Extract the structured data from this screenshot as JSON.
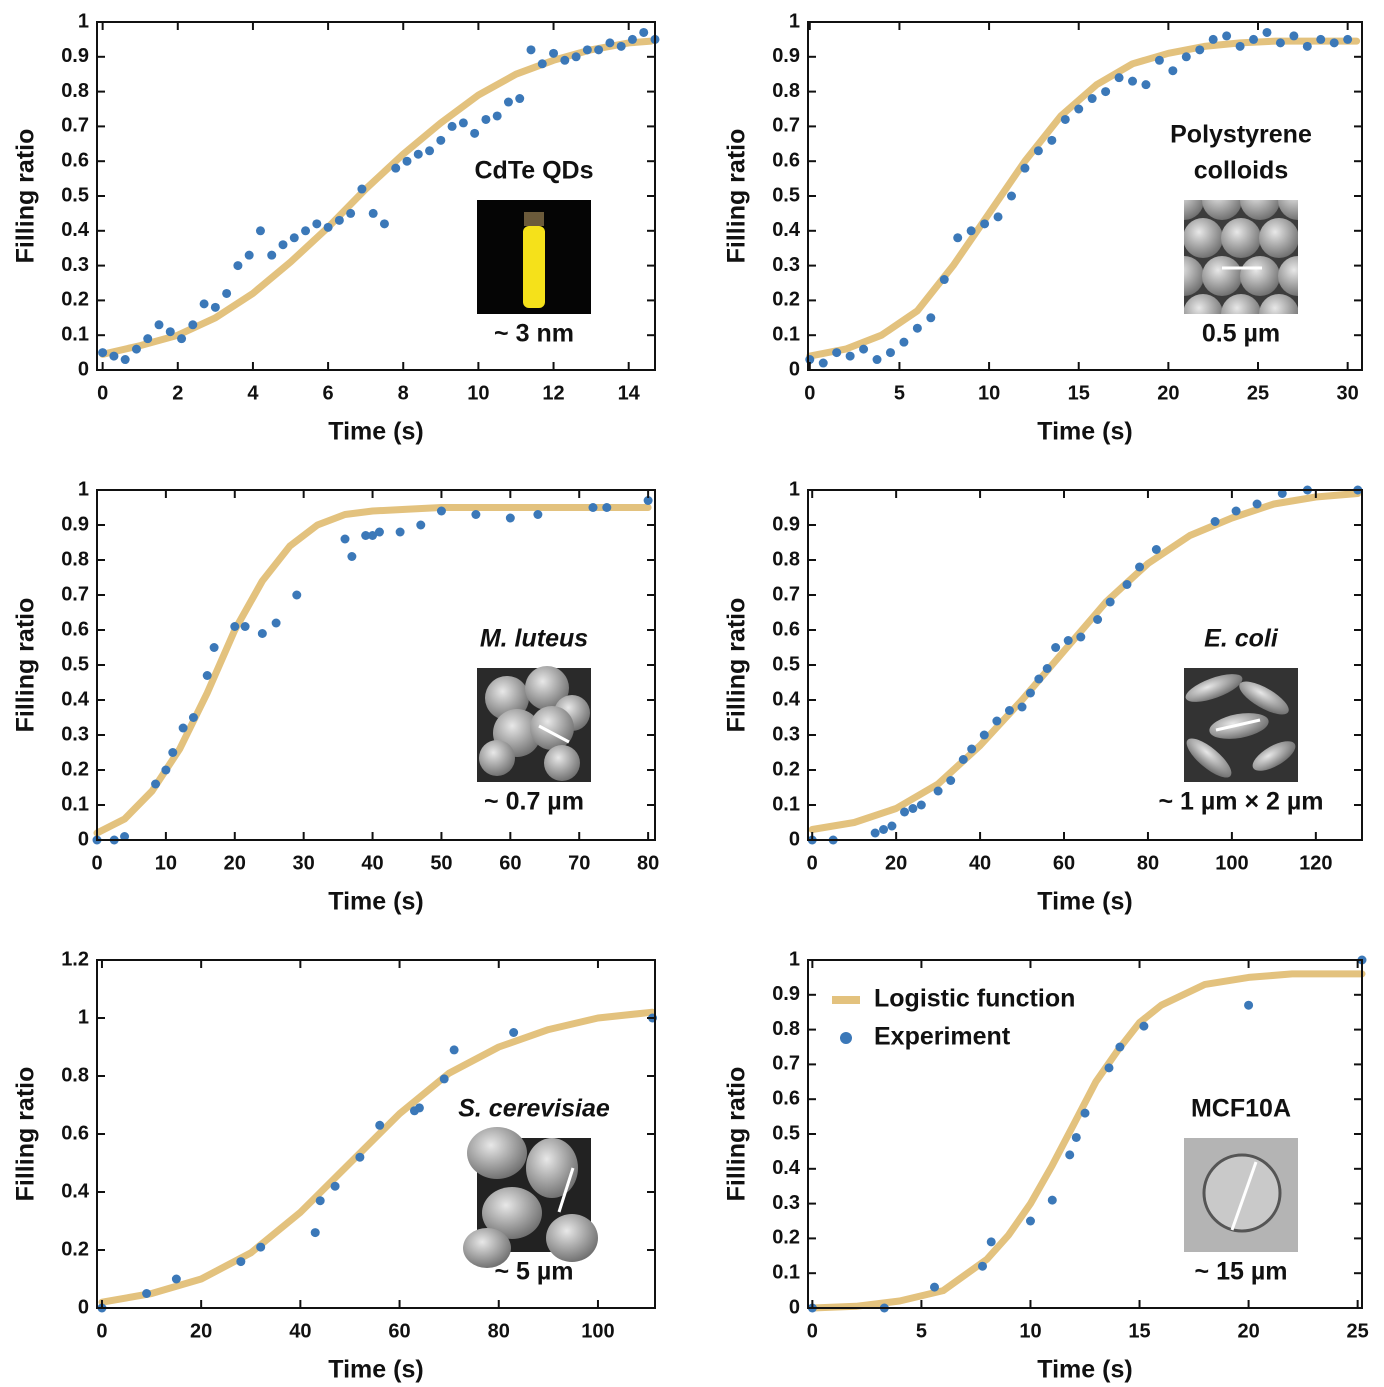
{
  "chart_data": [
    {
      "type": "scatter",
      "xlabel": "Time (s)",
      "ylabel": "Filling ratio",
      "xlim": [
        -0.15,
        14.7
      ],
      "ylim": [
        0,
        1
      ],
      "xticks": [
        0,
        2,
        4,
        6,
        8,
        10,
        12,
        14
      ],
      "yticks": [
        0,
        0.1,
        0.2,
        0.3,
        0.4,
        0.5,
        0.6,
        0.7,
        0.8,
        0.9,
        1
      ],
      "inset": {
        "lines": [
          "CdTe QDs"
        ],
        "caption": "~ 3 nm",
        "italic": false
      },
      "series": [
        {
          "type": "line",
          "color": "#e3c27e",
          "x": [
            0,
            1,
            2,
            3,
            4,
            5,
            6,
            7,
            8,
            9,
            10,
            11,
            12,
            13,
            14,
            14.6
          ],
          "values": [
            0.045,
            0.07,
            0.1,
            0.15,
            0.22,
            0.31,
            0.41,
            0.52,
            0.62,
            0.71,
            0.79,
            0.85,
            0.89,
            0.92,
            0.94,
            0.945
          ]
        },
        {
          "type": "scatter",
          "color": "#3b78b8",
          "x": [
            0,
            0.3,
            0.6,
            0.9,
            1.2,
            1.5,
            1.8,
            2.1,
            2.4,
            2.7,
            3.0,
            3.3,
            3.6,
            3.9,
            4.2,
            4.5,
            4.8,
            5.1,
            5.4,
            5.7,
            6.0,
            6.3,
            6.6,
            6.9,
            7.2,
            7.5,
            7.8,
            8.1,
            8.4,
            8.7,
            9.0,
            9.3,
            9.6,
            9.9,
            10.2,
            10.5,
            10.8,
            11.1,
            11.4,
            11.7,
            12.0,
            12.3,
            12.6,
            12.9,
            13.2,
            13.5,
            13.8,
            14.1,
            14.4,
            14.7
          ],
          "values": [
            0.05,
            0.04,
            0.03,
            0.06,
            0.09,
            0.13,
            0.11,
            0.09,
            0.13,
            0.19,
            0.18,
            0.22,
            0.3,
            0.33,
            0.4,
            0.33,
            0.36,
            0.38,
            0.4,
            0.42,
            0.41,
            0.43,
            0.45,
            0.52,
            0.45,
            0.42,
            0.58,
            0.6,
            0.62,
            0.63,
            0.66,
            0.7,
            0.71,
            0.68,
            0.72,
            0.73,
            0.77,
            0.78,
            0.92,
            0.88,
            0.91,
            0.89,
            0.9,
            0.92,
            0.92,
            0.94,
            0.93,
            0.95,
            0.97,
            0.95
          ]
        }
      ]
    },
    {
      "type": "scatter",
      "xlabel": "Time (s)",
      "ylabel": "Filling ratio",
      "xlim": [
        -0.1,
        30.8
      ],
      "ylim": [
        0,
        1
      ],
      "xticks": [
        0,
        5,
        10,
        15,
        20,
        25,
        30
      ],
      "yticks": [
        0,
        0.1,
        0.2,
        0.3,
        0.4,
        0.5,
        0.6,
        0.7,
        0.8,
        0.9,
        1
      ],
      "inset": {
        "lines": [
          "Polystyrene",
          "colloids"
        ],
        "caption": "0.5 µm",
        "italic": false
      },
      "series": [
        {
          "type": "line",
          "color": "#e3c27e",
          "x": [
            0,
            2,
            4,
            6,
            8,
            10,
            12,
            14,
            16,
            18,
            20,
            22,
            24,
            26,
            28,
            30.5
          ],
          "values": [
            0.04,
            0.06,
            0.1,
            0.17,
            0.3,
            0.45,
            0.6,
            0.73,
            0.82,
            0.88,
            0.91,
            0.93,
            0.94,
            0.945,
            0.945,
            0.945
          ]
        },
        {
          "type": "scatter",
          "color": "#3b78b8",
          "x": [
            0,
            0.75,
            1.5,
            2.25,
            3,
            3.75,
            4.5,
            5.25,
            6,
            6.75,
            7.5,
            8.25,
            9,
            9.75,
            10.5,
            11.25,
            12,
            12.75,
            13.5,
            14.25,
            15,
            15.75,
            16.5,
            17.25,
            18,
            18.75,
            19.5,
            20.25,
            21,
            21.75,
            22.5,
            23.25,
            24,
            24.75,
            25.5,
            26.25,
            27,
            27.75,
            28.5,
            29.25,
            30
          ],
          "values": [
            0.03,
            0.02,
            0.05,
            0.04,
            0.06,
            0.03,
            0.05,
            0.08,
            0.12,
            0.15,
            0.26,
            0.38,
            0.4,
            0.42,
            0.44,
            0.5,
            0.58,
            0.63,
            0.66,
            0.72,
            0.75,
            0.78,
            0.8,
            0.84,
            0.83,
            0.82,
            0.89,
            0.86,
            0.9,
            0.92,
            0.95,
            0.96,
            0.93,
            0.95,
            0.97,
            0.94,
            0.96,
            0.93,
            0.95,
            0.94,
            0.95
          ]
        }
      ]
    },
    {
      "type": "scatter",
      "xlabel": "Time (s)",
      "ylabel": "Filling ratio",
      "xlim": [
        0,
        81
      ],
      "ylim": [
        0,
        1
      ],
      "xticks": [
        0,
        10,
        20,
        30,
        40,
        50,
        60,
        70,
        80
      ],
      "yticks": [
        0,
        0.1,
        0.2,
        0.3,
        0.4,
        0.5,
        0.6,
        0.7,
        0.8,
        0.9,
        1
      ],
      "inset": {
        "lines": [
          "M. luteus"
        ],
        "caption": "~ 0.7 µm",
        "italic": true
      },
      "series": [
        {
          "type": "line",
          "color": "#e3c27e",
          "x": [
            0,
            4,
            8,
            12,
            16,
            20,
            24,
            28,
            32,
            36,
            40,
            45,
            50,
            60,
            70,
            80
          ],
          "values": [
            0.02,
            0.06,
            0.14,
            0.26,
            0.42,
            0.6,
            0.74,
            0.84,
            0.9,
            0.93,
            0.94,
            0.945,
            0.95,
            0.95,
            0.95,
            0.95
          ]
        },
        {
          "type": "scatter",
          "color": "#3b78b8",
          "x": [
            0,
            2.5,
            4,
            8.5,
            10,
            11,
            12.5,
            14,
            16,
            17,
            20,
            21.5,
            24,
            26,
            29,
            36,
            37,
            39,
            40,
            41,
            44,
            47,
            50,
            55,
            60,
            64,
            72,
            74,
            80
          ],
          "values": [
            0,
            0,
            0.01,
            0.16,
            0.2,
            0.25,
            0.32,
            0.35,
            0.47,
            0.55,
            0.61,
            0.61,
            0.59,
            0.62,
            0.7,
            0.86,
            0.81,
            0.87,
            0.87,
            0.88,
            0.88,
            0.9,
            0.94,
            0.93,
            0.92,
            0.93,
            0.95,
            0.95,
            0.97
          ]
        }
      ]
    },
    {
      "type": "scatter",
      "xlabel": "Time (s)",
      "ylabel": "Filling ratio",
      "xlim": [
        -1,
        131
      ],
      "ylim": [
        0,
        1
      ],
      "xticks": [
        0,
        20,
        40,
        60,
        80,
        100,
        120
      ],
      "yticks": [
        0,
        0.1,
        0.2,
        0.3,
        0.4,
        0.5,
        0.6,
        0.7,
        0.8,
        0.9,
        1
      ],
      "inset": {
        "lines": [
          "E. coli"
        ],
        "caption": "~ 1 µm × 2 µm",
        "italic": true
      },
      "series": [
        {
          "type": "line",
          "color": "#e3c27e",
          "x": [
            0,
            10,
            20,
            30,
            40,
            50,
            60,
            70,
            80,
            90,
            100,
            110,
            120,
            130
          ],
          "values": [
            0.03,
            0.05,
            0.09,
            0.16,
            0.27,
            0.4,
            0.54,
            0.68,
            0.79,
            0.87,
            0.92,
            0.96,
            0.98,
            0.99
          ]
        },
        {
          "type": "scatter",
          "color": "#3b78b8",
          "x": [
            0,
            5,
            15,
            17,
            19,
            22,
            24,
            26,
            30,
            33,
            36,
            38,
            41,
            44,
            47,
            50,
            52,
            54,
            56,
            58,
            61,
            64,
            68,
            71,
            75,
            78,
            82,
            96,
            101,
            106,
            112,
            118,
            130
          ],
          "values": [
            0,
            0,
            0.02,
            0.03,
            0.04,
            0.08,
            0.09,
            0.1,
            0.14,
            0.17,
            0.23,
            0.26,
            0.3,
            0.34,
            0.37,
            0.38,
            0.42,
            0.46,
            0.49,
            0.55,
            0.57,
            0.58,
            0.63,
            0.68,
            0.73,
            0.78,
            0.83,
            0.91,
            0.94,
            0.96,
            0.99,
            1,
            1
          ]
        }
      ]
    },
    {
      "type": "scatter",
      "xlabel": "Time (s)",
      "ylabel": "Filling ratio",
      "xlim": [
        -1,
        111.5
      ],
      "ylim": [
        0,
        1.2
      ],
      "xticks": [
        0,
        20,
        40,
        60,
        80,
        100
      ],
      "yticks": [
        0,
        0.2,
        0.4,
        0.6,
        0.8,
        1,
        1.2
      ],
      "inset": {
        "lines": [
          "S. cerevisiae"
        ],
        "caption": "~ 5 µm",
        "italic": true
      },
      "series": [
        {
          "type": "line",
          "color": "#e3c27e",
          "x": [
            0,
            10,
            20,
            30,
            40,
            50,
            60,
            70,
            80,
            90,
            100,
            111
          ],
          "values": [
            0.02,
            0.05,
            0.1,
            0.19,
            0.33,
            0.5,
            0.67,
            0.81,
            0.9,
            0.96,
            1.0,
            1.02
          ]
        },
        {
          "type": "scatter",
          "color": "#3b78b8",
          "x": [
            0,
            9,
            15,
            28,
            32,
            43,
            44,
            47,
            52,
            56,
            63,
            64,
            69,
            71,
            83,
            111
          ],
          "values": [
            0,
            0.05,
            0.1,
            0.16,
            0.21,
            0.26,
            0.37,
            0.42,
            0.52,
            0.63,
            0.68,
            0.69,
            0.79,
            0.89,
            0.95,
            1
          ]
        }
      ]
    },
    {
      "type": "scatter",
      "xlabel": "Time (s)",
      "ylabel": "Filling ratio",
      "xlim": [
        -0.2,
        25.2
      ],
      "ylim": [
        0,
        1
      ],
      "xticks": [
        0,
        5,
        10,
        15,
        20,
        25
      ],
      "yticks": [
        0,
        0.1,
        0.2,
        0.3,
        0.4,
        0.5,
        0.6,
        0.7,
        0.8,
        0.9,
        1
      ],
      "legend": "upper left",
      "inset": {
        "lines": [
          "MCF10A"
        ],
        "caption": "~ 15 µm",
        "italic": false
      },
      "series": [
        {
          "name": "Logistic function",
          "type": "line",
          "color": "#e3c27e",
          "x": [
            0,
            2,
            4,
            6,
            8,
            9,
            10,
            11,
            12,
            13,
            14,
            15,
            16,
            18,
            20,
            22,
            25.2
          ],
          "values": [
            0,
            0.005,
            0.02,
            0.05,
            0.14,
            0.21,
            0.3,
            0.41,
            0.53,
            0.65,
            0.74,
            0.82,
            0.87,
            0.93,
            0.95,
            0.96,
            0.96
          ]
        },
        {
          "name": "Experiment",
          "type": "scatter",
          "color": "#3b78b8",
          "x": [
            0,
            3.3,
            5.6,
            7.8,
            8.2,
            10,
            11,
            11.8,
            12.1,
            12.5,
            13.6,
            14.1,
            15.2,
            20,
            25.2
          ],
          "values": [
            0,
            0,
            0.06,
            0.12,
            0.19,
            0.25,
            0.31,
            0.44,
            0.49,
            0.56,
            0.69,
            0.75,
            0.81,
            0.87,
            1
          ]
        }
      ]
    }
  ]
}
